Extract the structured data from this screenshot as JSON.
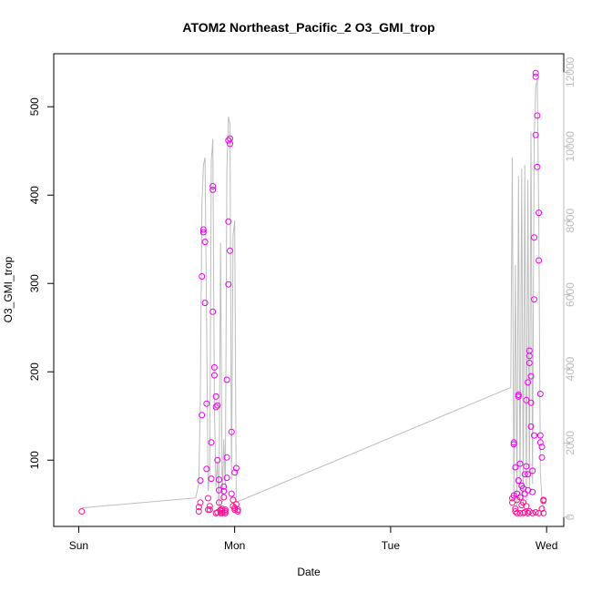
{
  "chart_data": {
    "type": "scatter",
    "title": "ATOM2 Northeast_Pacific_2 O3_GMI_trop",
    "xlabel": "Date",
    "ylabel": "O3_GMI_trop",
    "x_ticks": [
      {
        "label": "Sun",
        "day": 0
      },
      {
        "label": "Mon",
        "day": 1
      },
      {
        "label": "Tue",
        "day": 2
      },
      {
        "label": "Wed",
        "day": 3
      }
    ],
    "xlim_days": [
      -0.16,
      3.11
    ],
    "ylim": [
      25,
      560
    ],
    "y_ticks": [
      100,
      200,
      300,
      400,
      500
    ],
    "y2lim": [
      -250,
      12500
    ],
    "y2_ticks": [
      0,
      2000,
      4000,
      6000,
      8000,
      10000,
      12000
    ],
    "colors": {
      "points": "#ee00ee",
      "points_dense": "#ff1493",
      "line": "#bdbdbd",
      "axis": "#000000",
      "right_axis": "#bdbdbd"
    },
    "series": [
      {
        "marker": "open-circle",
        "axis": "left",
        "points": [
          [
            0.02,
            42
          ],
          [
            0.77,
            42
          ],
          [
            0.77,
            47
          ],
          [
            0.78,
            52
          ],
          [
            0.78,
            77
          ],
          [
            0.79,
            151
          ],
          [
            0.79,
            308
          ],
          [
            0.8,
            358
          ],
          [
            0.8,
            361
          ],
          [
            0.81,
            347
          ],
          [
            0.81,
            278
          ],
          [
            0.82,
            164
          ],
          [
            0.82,
            90
          ],
          [
            0.83,
            57
          ],
          [
            0.83,
            44
          ],
          [
            0.84,
            48
          ],
          [
            0.84,
            44
          ],
          [
            0.85,
            79
          ],
          [
            0.85,
            120
          ],
          [
            0.86,
            268
          ],
          [
            0.86,
            406
          ],
          [
            0.86,
            410
          ],
          [
            0.87,
            205
          ],
          [
            0.87,
            196
          ],
          [
            0.88,
            172
          ],
          [
            0.88,
            160
          ],
          [
            0.89,
            162
          ],
          [
            0.89,
            100
          ],
          [
            0.9,
            78
          ],
          [
            0.9,
            66
          ],
          [
            0.9,
            52
          ],
          [
            0.91,
            44
          ],
          [
            0.91,
            43
          ],
          [
            0.92,
            42
          ],
          [
            0.92,
            45
          ],
          [
            0.93,
            58
          ],
          [
            0.93,
            70
          ],
          [
            0.93,
            65
          ],
          [
            0.94,
            44
          ],
          [
            0.94,
            42
          ],
          [
            0.95,
            80
          ],
          [
            0.95,
            103
          ],
          [
            0.95,
            191
          ],
          [
            0.96,
            299
          ],
          [
            0.96,
            370
          ],
          [
            0.96,
            462
          ],
          [
            0.97,
            464
          ],
          [
            0.97,
            458
          ],
          [
            0.97,
            337
          ],
          [
            0.98,
            132
          ],
          [
            0.98,
            62
          ],
          [
            0.99,
            55
          ],
          [
            0.99,
            48
          ],
          [
            1.0,
            46
          ],
          [
            1.0,
            44
          ],
          [
            1.0,
            86
          ],
          [
            1.01,
            91
          ],
          [
            1.01,
            50
          ],
          [
            1.02,
            44
          ],
          [
            1.02,
            42
          ],
          [
            2.78,
            52
          ],
          [
            2.78,
            57
          ],
          [
            2.79,
            60
          ],
          [
            2.79,
            118
          ],
          [
            2.79,
            120
          ],
          [
            2.8,
            92
          ],
          [
            2.8,
            45
          ],
          [
            2.81,
            55
          ],
          [
            2.81,
            62
          ],
          [
            2.82,
            77
          ],
          [
            2.82,
            174
          ],
          [
            2.82,
            172
          ],
          [
            2.83,
            96
          ],
          [
            2.83,
            58
          ],
          [
            2.84,
            49
          ],
          [
            2.84,
            71
          ],
          [
            2.85,
            68
          ],
          [
            2.85,
            52
          ],
          [
            2.86,
            62
          ],
          [
            2.86,
            84
          ],
          [
            2.87,
            93
          ],
          [
            2.87,
            48
          ],
          [
            2.87,
            168
          ],
          [
            2.88,
            66
          ],
          [
            2.88,
            84
          ],
          [
            2.88,
            188
          ],
          [
            2.89,
            210
          ],
          [
            2.89,
            218
          ],
          [
            2.89,
            224
          ],
          [
            2.9,
            195
          ],
          [
            2.9,
            165
          ],
          [
            2.9,
            138
          ],
          [
            2.91,
            88
          ],
          [
            2.91,
            64
          ],
          [
            2.92,
            128
          ],
          [
            2.92,
            282
          ],
          [
            2.92,
            352
          ],
          [
            2.93,
            468
          ],
          [
            2.93,
            538
          ],
          [
            2.93,
            534
          ],
          [
            2.94,
            490
          ],
          [
            2.94,
            432
          ],
          [
            2.95,
            380
          ],
          [
            2.95,
            326
          ],
          [
            2.96,
            175
          ],
          [
            2.96,
            128
          ],
          [
            2.96,
            120
          ],
          [
            2.97,
            103
          ],
          [
            2.97,
            115
          ],
          [
            2.97,
            45
          ],
          [
            2.98,
            54
          ],
          [
            2.98,
            55
          ],
          [
            2.98,
            40
          ],
          [
            0.88,
            40
          ],
          [
            0.89,
            41
          ],
          [
            0.91,
            40
          ],
          [
            0.92,
            40
          ],
          [
            0.94,
            40
          ],
          [
            2.8,
            42
          ],
          [
            2.81,
            40
          ],
          [
            2.83,
            40
          ],
          [
            2.85,
            40
          ],
          [
            2.86,
            41
          ],
          [
            2.88,
            40
          ],
          [
            2.89,
            42
          ],
          [
            2.91,
            40
          ],
          [
            2.93,
            41
          ],
          [
            2.95,
            40
          ]
        ]
      },
      {
        "marker": "line",
        "axis": "right",
        "points": [
          [
            0.02,
            250
          ],
          [
            0.75,
            520
          ],
          [
            0.77,
            900
          ],
          [
            0.78,
            3300
          ],
          [
            0.79,
            8400
          ],
          [
            0.8,
            9500
          ],
          [
            0.81,
            9700
          ],
          [
            0.82,
            5400
          ],
          [
            0.83,
            700
          ],
          [
            0.84,
            1200
          ],
          [
            0.85,
            9600
          ],
          [
            0.86,
            10200
          ],
          [
            0.87,
            3000
          ],
          [
            0.88,
            800
          ],
          [
            0.89,
            1500
          ],
          [
            0.9,
            300
          ],
          [
            0.91,
            7400
          ],
          [
            0.92,
            400
          ],
          [
            0.93,
            2100
          ],
          [
            0.94,
            800
          ],
          [
            0.95,
            9300
          ],
          [
            0.96,
            10800
          ],
          [
            0.97,
            10600
          ],
          [
            0.98,
            1000
          ],
          [
            0.99,
            7600
          ],
          [
            1.0,
            8000
          ],
          [
            1.01,
            400
          ],
          [
            2.77,
            3500
          ],
          [
            2.78,
            9700
          ],
          [
            2.79,
            500
          ],
          [
            2.8,
            6800
          ],
          [
            2.81,
            300
          ],
          [
            2.82,
            9200
          ],
          [
            2.83,
            500
          ],
          [
            2.84,
            9400
          ],
          [
            2.85,
            300
          ],
          [
            2.86,
            9500
          ],
          [
            2.87,
            400
          ],
          [
            2.88,
            9100
          ],
          [
            2.89,
            600
          ],
          [
            2.9,
            10400
          ],
          [
            2.91,
            900
          ],
          [
            2.92,
            10200
          ],
          [
            2.93,
            11600
          ],
          [
            2.94,
            11800
          ],
          [
            2.95,
            8000
          ],
          [
            2.96,
            1200
          ],
          [
            2.97,
            500
          ],
          [
            2.98,
            200
          ]
        ]
      }
    ]
  }
}
